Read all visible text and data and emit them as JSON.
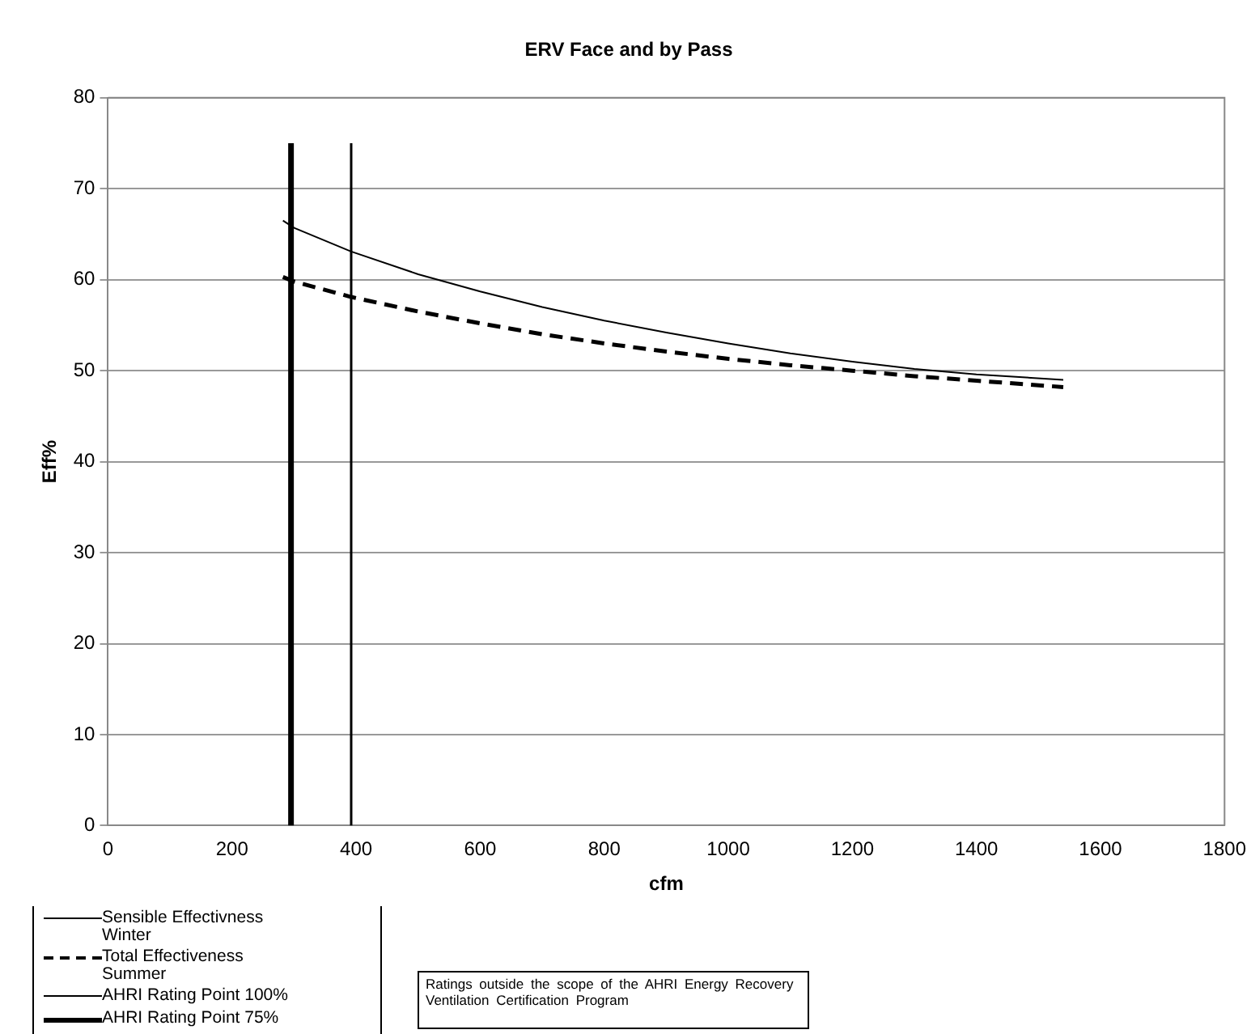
{
  "chart_data": {
    "type": "line",
    "title": "ERV Face and by Pass",
    "xlabel": "cfm",
    "ylabel": "Eff%",
    "xlim": [
      0,
      1800
    ],
    "xticks": [
      0,
      200,
      400,
      600,
      800,
      1000,
      1200,
      1400,
      1600,
      1800
    ],
    "ylim": [
      0,
      80
    ],
    "yticks": [
      0,
      10,
      20,
      30,
      40,
      50,
      60,
      70,
      80
    ],
    "grid": "y",
    "legend": "bottom left",
    "marker": "none",
    "series": [
      {
        "name": "Sensible Effectivness Winter",
        "color": "#000000",
        "line_style": "solid",
        "x": [
          282,
          300,
          392,
          500,
          600,
          700,
          800,
          900,
          1000,
          1100,
          1200,
          1300,
          1400,
          1540
        ],
        "values": [
          66.5,
          65.7,
          63.1,
          60.6,
          58.7,
          57.0,
          55.5,
          54.2,
          53.0,
          51.9,
          51.0,
          50.2,
          49.6,
          49.0
        ]
      },
      {
        "name": "Total Effectiveness Summer",
        "color": "#000000",
        "line_style": "dashed",
        "x": [
          282,
          300,
          392,
          500,
          600,
          700,
          800,
          900,
          1000,
          1100,
          1200,
          1300,
          1400,
          1540
        ],
        "values": [
          60.3,
          59.8,
          58.1,
          56.5,
          55.2,
          54.0,
          53.0,
          52.1,
          51.3,
          50.6,
          50.0,
          49.4,
          48.9,
          48.2
        ]
      },
      {
        "name": "AHRI Rating Point 100%",
        "color": "#000000",
        "line_style": "solid",
        "x": [
          392,
          392
        ],
        "values": [
          0,
          75
        ]
      },
      {
        "name": "AHRI Rating Point 75%",
        "color": "#000000",
        "line_style": "solid",
        "x": [
          295,
          295
        ],
        "values": [
          0,
          75
        ]
      }
    ],
    "annotations": [
      "Ratings outside the scope of the AHRI Energy Recovery Ventilation Certification Program"
    ]
  }
}
